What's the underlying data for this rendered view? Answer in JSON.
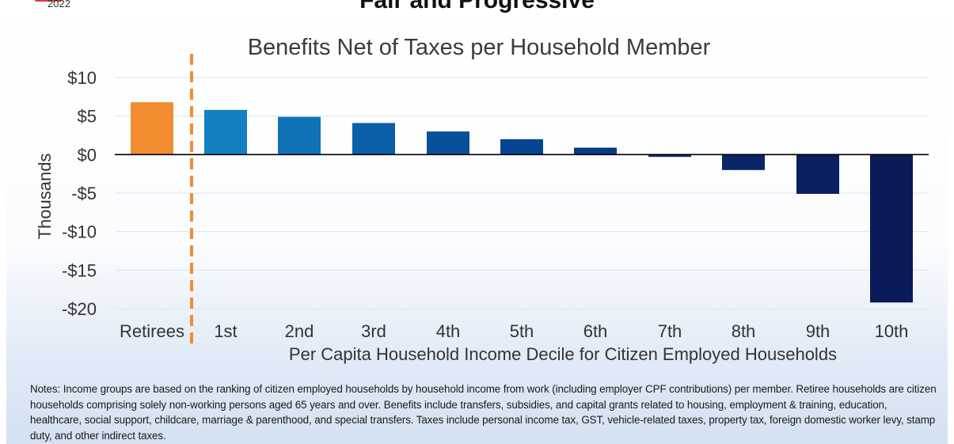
{
  "header": {
    "year": "2022",
    "headline": "Fair and Progressive"
  },
  "colors": {
    "retirees": "#f28c30",
    "gridline": "#dfe3e8",
    "zero_line": "#000000",
    "divider": "#f28c30",
    "deciles": [
      "#1380c1",
      "#1072b6",
      "#0b5ea8",
      "#08509b",
      "#064591",
      "#053a85",
      "#0b2c73",
      "#0a2568",
      "#0a2061",
      "#0b1a58"
    ]
  },
  "chart_data": {
    "type": "bar",
    "title": "Benefits Net of Taxes per Household Member",
    "xlabel": "Per Capita Household Income Decile for Citizen Employed Households",
    "ylabel": "Thousands",
    "ylim": [
      -20,
      10
    ],
    "yticks": [
      10,
      5,
      0,
      -5,
      -10,
      -15,
      -20
    ],
    "ytick_labels": [
      "$10",
      "$5",
      "$0",
      "-$5",
      "-$10",
      "-$15",
      "-$20"
    ],
    "categories": [
      "Retirees",
      "1st",
      "2nd",
      "3rd",
      "4th",
      "5th",
      "6th",
      "7th",
      "8th",
      "9th",
      "10th"
    ],
    "values": [
      6.8,
      5.8,
      4.9,
      4.1,
      3.0,
      2.0,
      0.9,
      -0.3,
      -2.0,
      -5.1,
      -19.2
    ],
    "grid": true,
    "legend": "none"
  },
  "notes": "Notes: Income groups are based on the ranking of citizen employed households by household income from work (including employer CPF contributions) per member. Retiree households are citizen households comprising solely non-working persons aged 65 years and over. Benefits include transfers, subsidies, and capital grants related to housing, employment & training, education, healthcare, social support, childcare, marriage & parenthood, and special transfers. Taxes include personal income tax, GST, vehicle-related taxes, property tax, foreign domestic worker levy, stamp duty, and other indirect taxes."
}
